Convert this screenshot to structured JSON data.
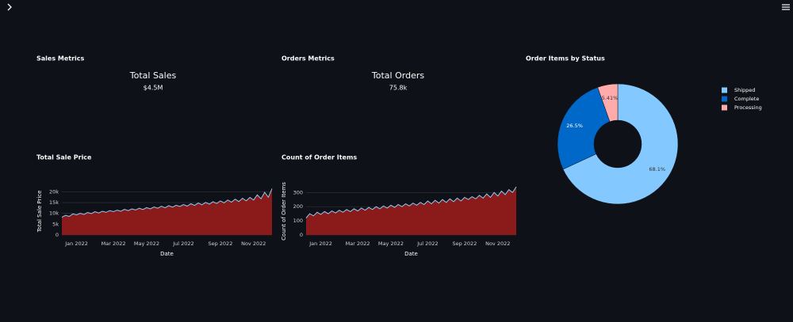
{
  "metrics": [
    {
      "section": "Sales Metrics",
      "label": "Total Sales",
      "value": "$4.5M"
    },
    {
      "section": "Orders Metrics",
      "label": "Total Orders",
      "value": "75.8k"
    }
  ],
  "chart_data": [
    {
      "type": "area",
      "title": "Total Sale Price",
      "x_label": "Date",
      "y_label": "Total Sale Price",
      "color": "#8ecbf5",
      "fill": "#8b1a1a",
      "grid": true,
      "categories": [
        null,
        null,
        null,
        null,
        "Jan 2022",
        null,
        null,
        null,
        null,
        null,
        null,
        null,
        null,
        null,
        "Mar 2022",
        null,
        null,
        null,
        null,
        null,
        null,
        null,
        null,
        "May 2022",
        null,
        null,
        null,
        null,
        null,
        null,
        null,
        null,
        null,
        "Jul 2022",
        null,
        null,
        null,
        null,
        null,
        null,
        null,
        null,
        null,
        "Sep 2022",
        null,
        null,
        null,
        null,
        null,
        null,
        null,
        null,
        "Nov 2022",
        null,
        null,
        null,
        null,
        null
      ],
      "values": [
        8200,
        9100,
        8600,
        9800,
        9300,
        10100,
        9500,
        10400,
        9900,
        10800,
        10200,
        11000,
        10500,
        11300,
        10800,
        11500,
        11000,
        11900,
        11300,
        12100,
        11600,
        12400,
        11800,
        12700,
        12100,
        13000,
        12400,
        13300,
        12600,
        13600,
        12900,
        13800,
        13200,
        14100,
        13400,
        14500,
        13700,
        14800,
        14000,
        15100,
        14300,
        15400,
        14600,
        15800,
        14900,
        16200,
        15200,
        16600,
        15500,
        17000,
        15800,
        17400,
        16200,
        18600,
        16800,
        19800,
        17500,
        21500
      ],
      "ylim": [
        0,
        22000
      ],
      "yticks": [
        0,
        {
          "value": 5000,
          "label": "5k"
        },
        {
          "value": 10000,
          "label": "10k"
        },
        {
          "value": 15000,
          "label": "15k"
        },
        {
          "value": 20000,
          "label": "20k"
        }
      ]
    },
    {
      "type": "area",
      "title": "Count of Order Items",
      "x_label": "Date",
      "y_label": "Count of Order Items",
      "color": "#8ecbf5",
      "fill": "#8b1a1a",
      "grid": true,
      "categories": [
        null,
        null,
        null,
        null,
        "Jan 2022",
        null,
        null,
        null,
        null,
        null,
        null,
        null,
        null,
        null,
        "Mar 2022",
        null,
        null,
        null,
        null,
        null,
        null,
        null,
        null,
        "May 2022",
        null,
        null,
        null,
        null,
        null,
        null,
        null,
        null,
        null,
        "Jul 2022",
        null,
        null,
        null,
        null,
        null,
        null,
        null,
        null,
        null,
        "Sep 2022",
        null,
        null,
        null,
        null,
        null,
        null,
        null,
        null,
        "Nov 2022",
        null,
        null,
        null,
        null,
        null
      ],
      "values": [
        120,
        150,
        135,
        160,
        145,
        165,
        150,
        170,
        155,
        175,
        160,
        180,
        165,
        185,
        170,
        190,
        175,
        195,
        180,
        200,
        185,
        205,
        190,
        210,
        195,
        215,
        200,
        220,
        205,
        225,
        210,
        230,
        215,
        240,
        220,
        245,
        225,
        250,
        230,
        255,
        235,
        260,
        240,
        265,
        250,
        270,
        255,
        280,
        260,
        290,
        265,
        300,
        275,
        310,
        285,
        320,
        300,
        340
      ],
      "ylim": [
        0,
        335
      ],
      "yticks": [
        0,
        100,
        200,
        300
      ]
    },
    {
      "type": "pie",
      "title": "Order Items by Status",
      "hole": true,
      "legend": "right",
      "categories": [
        "Shipped",
        "Complete",
        "Processing"
      ],
      "values": [
        68.1,
        26.5,
        5.41
      ],
      "value_labels": [
        "68.1%",
        "26.5%",
        "5.41%"
      ],
      "colors": [
        "#83c9ff",
        "#0068c9",
        "#ffabab"
      ]
    }
  ]
}
